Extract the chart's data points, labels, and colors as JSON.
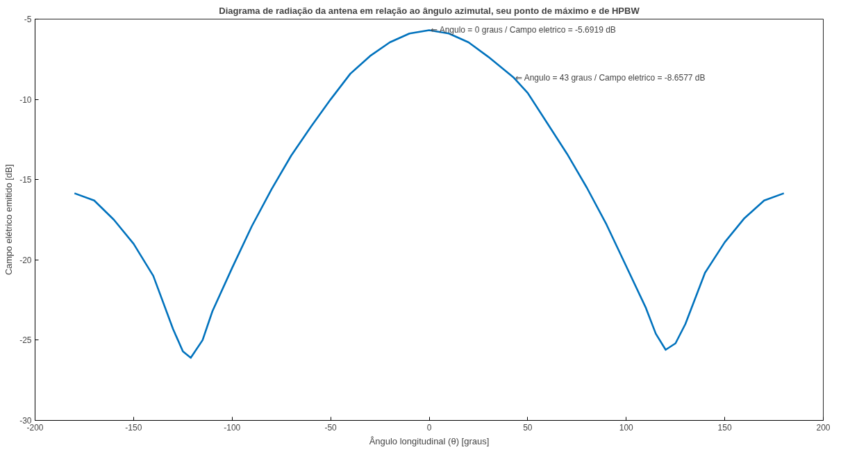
{
  "chart_data": {
    "type": "line",
    "title": "Diagrama de radiação da antena em relação ao ângulo azimutal, seu ponto de máximo e de HPBW",
    "xlabel": "Ângulo longitudinal (θ) [graus]",
    "ylabel": "Campo elétrico emitido [dB]",
    "x": [
      -180,
      -170,
      -160,
      -150,
      -140,
      -130,
      -125,
      -121,
      -115,
      -110,
      -100,
      -90,
      -80,
      -70,
      -60,
      -50,
      -40,
      -30,
      -20,
      -10,
      0,
      10,
      20,
      30,
      40,
      43,
      50,
      60,
      70,
      80,
      90,
      100,
      110,
      115,
      120,
      125,
      130,
      140,
      150,
      160,
      170,
      180
    ],
    "series": [
      {
        "color": "#0072bd",
        "values": [
          -15.85,
          -16.3,
          -17.5,
          -19.0,
          -21.0,
          -24.3,
          -25.7,
          -26.1,
          -25.0,
          -23.2,
          -20.5,
          -17.9,
          -15.6,
          -13.5,
          -11.7,
          -10.0,
          -8.4,
          -7.3,
          -6.45,
          -5.9,
          -5.6919,
          -5.9,
          -6.45,
          -7.35,
          -8.35,
          -8.6577,
          -9.6,
          -11.5,
          -13.4,
          -15.5,
          -17.8,
          -20.4,
          -23.0,
          -24.6,
          -25.6,
          -25.2,
          -24.0,
          -20.8,
          -18.9,
          -17.4,
          -16.3,
          -15.85
        ]
      }
    ],
    "annotations": [
      {
        "text": "⇐ Angulo = 0 graus / Campo eletrico = -5.6919 dB",
        "x": 0,
        "y": -5.6919
      },
      {
        "text": "⇐ Angulo = 43 graus / Campo eletrico = -8.6577 dB",
        "x": 43,
        "y": -8.6577
      }
    ],
    "xlim": [
      -200,
      200
    ],
    "ylim": [
      -30,
      -5
    ],
    "xticks": [
      -200,
      -150,
      -100,
      -50,
      0,
      50,
      100,
      150,
      200
    ],
    "yticks": [
      -30,
      -25,
      -20,
      -15,
      -10,
      -5
    ],
    "grid": false,
    "marker": "none",
    "line_style": "solid"
  }
}
